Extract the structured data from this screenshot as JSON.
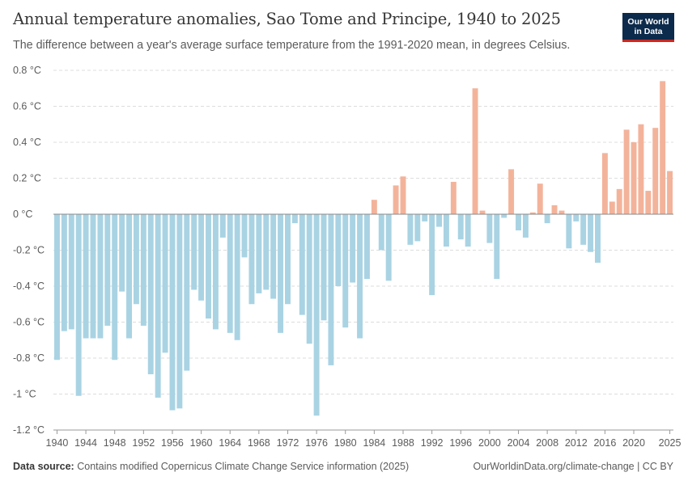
{
  "header": {
    "title": "Annual temperature anomalies, Sao Tome and Principe, 1940 to 2025",
    "subtitle": "The difference between a year's average surface temperature from the 1991-2020 mean, in degrees Celsius."
  },
  "logo": {
    "line1": "Our World",
    "line2": "in Data"
  },
  "footer": {
    "source_label": "Data source:",
    "source_text": "Contains modified Copernicus Climate Change Service information (2025)",
    "link": "OurWorldinData.org/climate-change | CC BY"
  },
  "colors": {
    "positive": "#f3b39b",
    "negative": "#a9d3e3",
    "grid": "#dddddd",
    "zero": "#8a8a8a"
  },
  "chart_data": {
    "type": "bar",
    "title": "Annual temperature anomalies, Sao Tome and Principe, 1940 to 2025",
    "ylim": [
      -1.2,
      0.8
    ],
    "yticks": [
      -1.2,
      -1.0,
      -0.8,
      -0.6,
      -0.4,
      -0.2,
      0,
      0.2,
      0.4,
      0.6,
      0.8
    ],
    "ytick_labels": [
      "-1.2 °C",
      "-1 °C",
      "-0.8 °C",
      "-0.6 °C",
      "-0.4 °C",
      "-0.2 °C",
      "0 °C",
      "0.2 °C",
      "0.4 °C",
      "0.6 °C",
      "0.8 °C"
    ],
    "xtick_labels": [
      "1940",
      "1944",
      "1948",
      "1952",
      "1956",
      "1960",
      "1964",
      "1968",
      "1972",
      "1976",
      "1980",
      "1984",
      "1988",
      "1992",
      "1996",
      "2000",
      "2004",
      "2008",
      "2012",
      "2016",
      "2020",
      "2025"
    ],
    "grid": true,
    "years": [
      1940,
      1941,
      1942,
      1943,
      1944,
      1945,
      1946,
      1947,
      1948,
      1949,
      1950,
      1951,
      1952,
      1953,
      1954,
      1955,
      1956,
      1957,
      1958,
      1959,
      1960,
      1961,
      1962,
      1963,
      1964,
      1965,
      1966,
      1967,
      1968,
      1969,
      1970,
      1971,
      1972,
      1973,
      1974,
      1975,
      1976,
      1977,
      1978,
      1979,
      1980,
      1981,
      1982,
      1983,
      1984,
      1985,
      1986,
      1987,
      1988,
      1989,
      1990,
      1991,
      1992,
      1993,
      1994,
      1995,
      1996,
      1997,
      1998,
      1999,
      2000,
      2001,
      2002,
      2003,
      2004,
      2005,
      2006,
      2007,
      2008,
      2009,
      2010,
      2011,
      2012,
      2013,
      2014,
      2015,
      2016,
      2017,
      2018,
      2019,
      2020,
      2021,
      2022,
      2023,
      2024,
      2025
    ],
    "values": [
      -0.81,
      -0.65,
      -0.64,
      -1.01,
      -0.69,
      -0.69,
      -0.69,
      -0.62,
      -0.81,
      -0.43,
      -0.69,
      -0.5,
      -0.62,
      -0.89,
      -1.02,
      -0.77,
      -1.09,
      -1.08,
      -0.87,
      -0.42,
      -0.48,
      -0.58,
      -0.64,
      -0.13,
      -0.66,
      -0.7,
      -0.24,
      -0.5,
      -0.44,
      -0.42,
      -0.47,
      -0.66,
      -0.5,
      -0.05,
      -0.56,
      -0.72,
      -1.12,
      -0.59,
      -0.84,
      -0.4,
      -0.63,
      -0.38,
      -0.69,
      -0.36,
      0.08,
      -0.2,
      -0.37,
      0.16,
      0.21,
      -0.17,
      -0.15,
      -0.04,
      -0.45,
      -0.07,
      -0.18,
      0.18,
      -0.14,
      -0.18,
      0.7,
      0.02,
      -0.16,
      -0.36,
      -0.02,
      0.25,
      -0.09,
      -0.13,
      0.01,
      0.17,
      -0.05,
      0.05,
      0.02,
      -0.19,
      -0.04,
      -0.17,
      -0.21,
      -0.27,
      0.34,
      0.07,
      0.14,
      0.47,
      0.4,
      0.5,
      0.13,
      0.48,
      0.74,
      0.24
    ]
  }
}
